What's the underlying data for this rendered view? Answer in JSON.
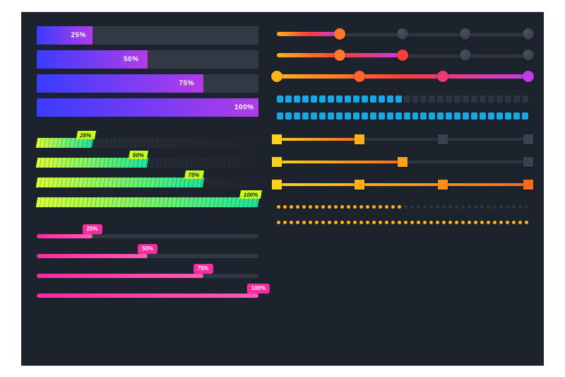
{
  "background_color": "#1d232c",
  "track_color": "#323945",
  "groupA": {
    "gradient_start": "#3a3cff",
    "gradient_end": "#b13ce8",
    "label_color": "#ffffff",
    "label_fontsize": 10,
    "bars": [
      {
        "pct": 25,
        "label": "25%"
      },
      {
        "pct": 50,
        "label": "50%"
      },
      {
        "pct": 75,
        "label": "75%"
      },
      {
        "pct": 100,
        "label": "100%"
      }
    ]
  },
  "groupB": {
    "gradient_start": "#d9ff3a",
    "gradient_end": "#1ee69b",
    "tag_bg": "#c8ff1a",
    "tag_text_color": "#10141a",
    "bars": [
      {
        "pct": 25,
        "label": "25%"
      },
      {
        "pct": 50,
        "label": "50%"
      },
      {
        "pct": 75,
        "label": "75%"
      },
      {
        "pct": 100,
        "label": "100%"
      }
    ]
  },
  "groupC": {
    "gradient_start": "#ff2aa0",
    "gradient_end": "#ff5ab8",
    "bubble_bg": "#ff2aa0",
    "bars": [
      {
        "pct": 25,
        "label": "25%"
      },
      {
        "pct": 50,
        "label": "50%"
      },
      {
        "pct": 75,
        "label": "75%"
      },
      {
        "pct": 100,
        "label": "100%"
      }
    ]
  },
  "circleSliders": {
    "gradient_start": "#ffb21a",
    "gradient_mid": "#ff3b3b",
    "gradient_end": "#c13ce8",
    "rows": [
      {
        "filled_stops": [
          25
        ],
        "empty_stops": [
          50,
          75,
          100
        ]
      },
      {
        "filled_stops": [
          25,
          50
        ],
        "empty_stops": [
          75,
          100
        ]
      },
      {
        "filled_stops": [
          0,
          33,
          66,
          100
        ],
        "empty_stops": []
      }
    ]
  },
  "segmentBars": {
    "on_color": "#17a8e6",
    "cell_count": 30,
    "rows": [
      {
        "on": 15
      },
      {
        "on": 30
      }
    ]
  },
  "squareSliders": {
    "gradient_start": "#ffd21a",
    "gradient_end": "#ff6a1a",
    "rows": [
      {
        "filled_stops": [
          0,
          33
        ],
        "empty_stops": [
          66,
          100
        ]
      },
      {
        "filled_stops": [
          0,
          50
        ],
        "empty_stops": [
          100
        ]
      },
      {
        "filled_stops": [
          0,
          33,
          66,
          100
        ],
        "empty_stops": []
      }
    ]
  },
  "dotBars": {
    "on_color": "#ffb21a",
    "dot_count": 40,
    "rows": [
      {
        "on": 20
      },
      {
        "on": 40
      }
    ]
  }
}
